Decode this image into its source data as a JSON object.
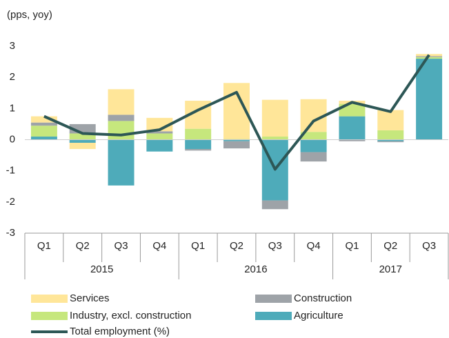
{
  "chart_data": {
    "type": "bar",
    "stacked": true,
    "y_label": "(pps, yoy)",
    "groups": [
      {
        "label": "2015",
        "categories": [
          "Q1",
          "Q2",
          "Q3",
          "Q4"
        ]
      },
      {
        "label": "2016",
        "categories": [
          "Q1",
          "Q2",
          "Q3",
          "Q4"
        ]
      },
      {
        "label": "2017",
        "categories": [
          "Q1",
          "Q2",
          "Q3"
        ]
      }
    ],
    "ylim": [
      -3,
      3
    ],
    "yticks": [
      -3,
      -2,
      -1,
      0,
      1,
      2,
      3
    ],
    "grid": false,
    "series": [
      {
        "name": "Services",
        "color": "#ffe699",
        "values": [
          0.2,
          -0.2,
          0.82,
          0.43,
          0.9,
          1.8,
          1.18,
          1.05,
          0.1,
          0.65,
          0.07
        ]
      },
      {
        "name": "Construction",
        "color": "#9ea3a8",
        "values": [
          0.1,
          0.3,
          0.2,
          0.07,
          -0.05,
          -0.23,
          -0.28,
          -0.3,
          -0.05,
          -0.03,
          0.03
        ]
      },
      {
        "name": "Industry, excl. construction",
        "color": "#c6e77d",
        "values": [
          0.35,
          0.2,
          0.6,
          0.2,
          0.35,
          0.02,
          0.1,
          0.25,
          0.4,
          0.3,
          0.05
        ]
      },
      {
        "name": "Agriculture",
        "color": "#4eabba",
        "values": [
          0.1,
          -0.1,
          -1.47,
          -0.38,
          -0.3,
          -0.05,
          -1.95,
          -0.4,
          0.75,
          -0.05,
          2.6
        ]
      },
      {
        "name": "Total employment (%)",
        "type": "line",
        "color": "#2d5756",
        "values": [
          0.75,
          0.2,
          0.15,
          0.32,
          0.95,
          1.52,
          -0.95,
          0.6,
          1.2,
          0.9,
          2.72
        ]
      }
    ]
  }
}
